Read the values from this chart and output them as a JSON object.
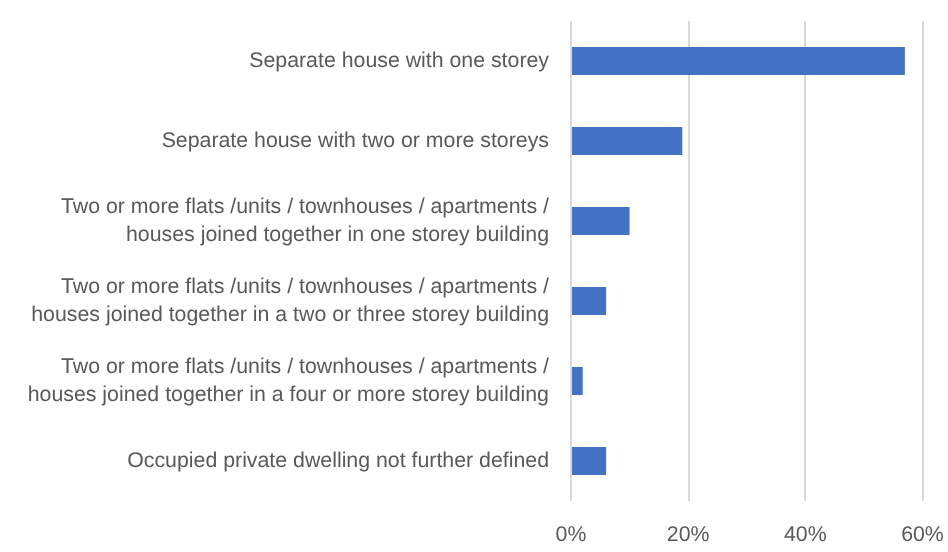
{
  "chart_data": {
    "type": "bar",
    "orientation": "horizontal",
    "categories": [
      "Separate house with one storey",
      "Separate house with two or more storeys",
      "Two or more flats /units / townhouses / apartments /\nhouses joined together in one storey building",
      "Two or more flats /units / townhouses / apartments /\nhouses joined together in a two or three storey building",
      "Two or more flats /units / townhouses / apartments /\nhouses joined together in a four or more storey building",
      "Occupied private dwelling not further defined"
    ],
    "values": [
      57,
      19,
      10,
      6,
      2,
      6
    ],
    "color": "#4472c4",
    "xlim": [
      0,
      60
    ],
    "xticks": [
      {
        "value": 0,
        "label": "0%"
      },
      {
        "value": 20,
        "label": "20%"
      },
      {
        "value": 40,
        "label": "40%"
      },
      {
        "value": 60,
        "label": "60%"
      }
    ],
    "grid": "x"
  }
}
